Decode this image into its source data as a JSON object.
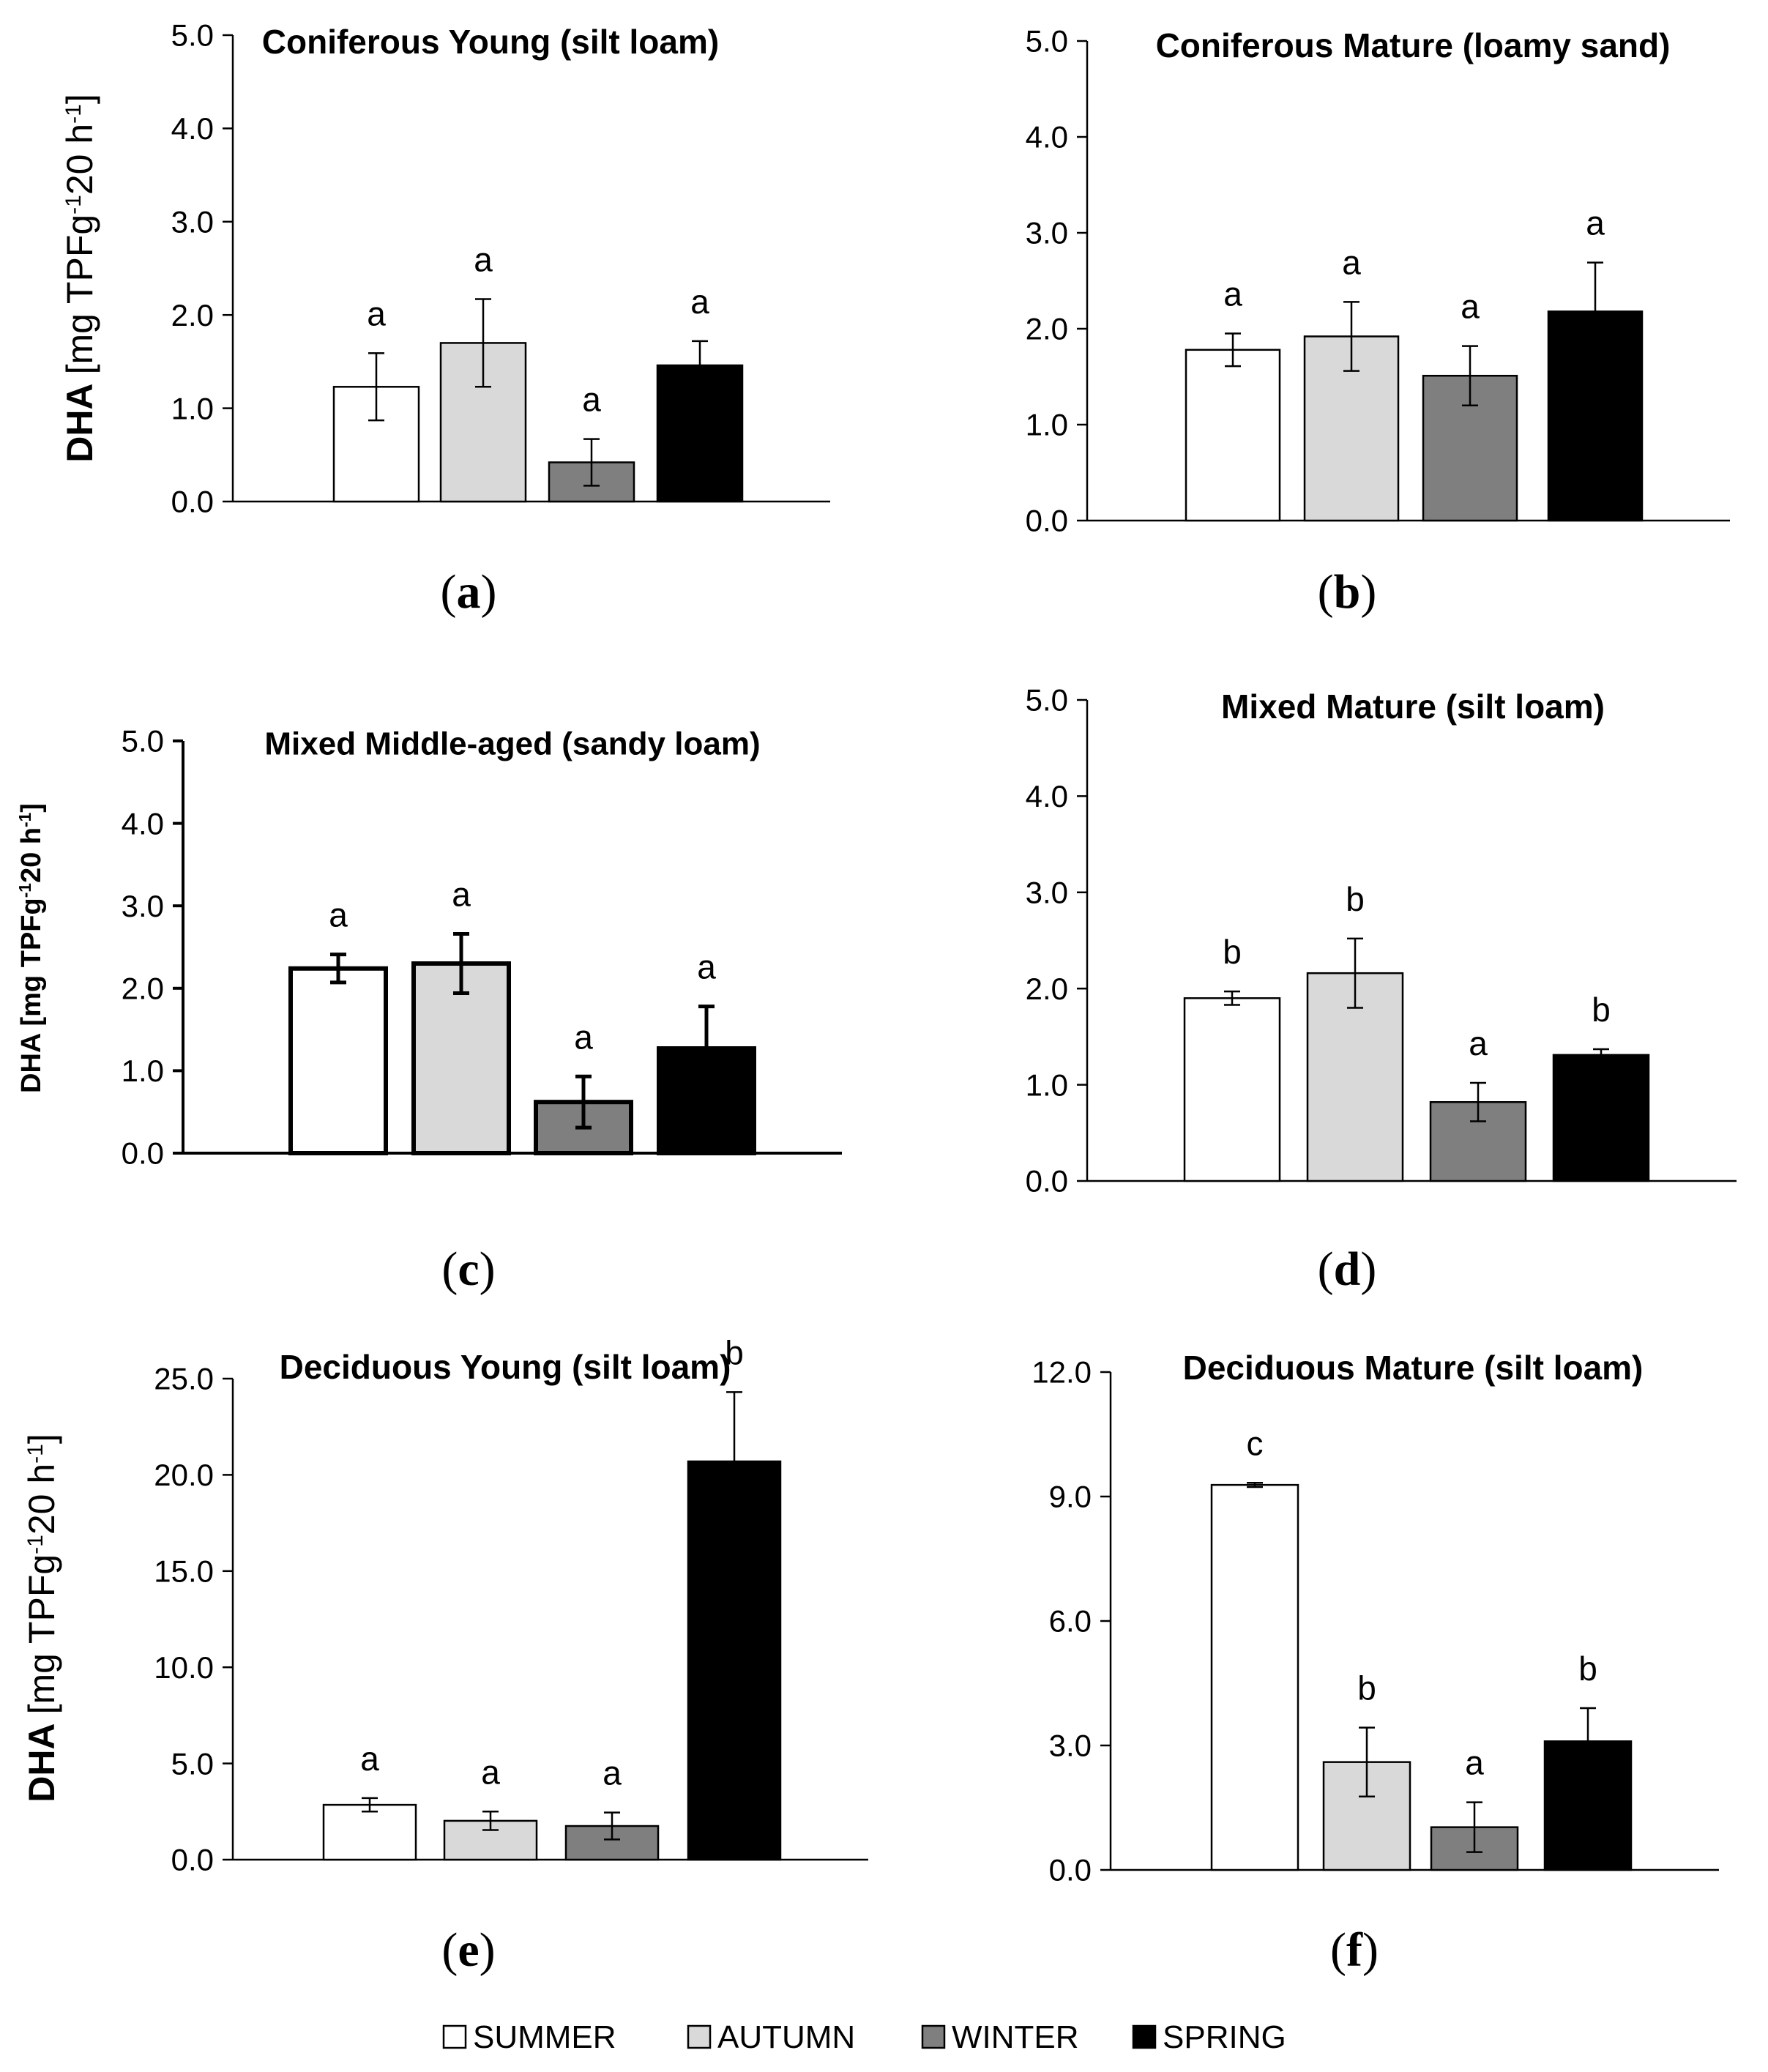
{
  "figure": {
    "legend": [
      {
        "name": "SUMMER",
        "color": "#ffffff"
      },
      {
        "name": "AUTUMN",
        "color": "#d9d9d9"
      },
      {
        "name": "WINTER",
        "color": "#7f7f7f"
      },
      {
        "name": "SPRING",
        "color": "#000000"
      }
    ],
    "ylabel_prefix": "DHA",
    "ylabel_unit_a": "[mg TPFg",
    "ylabel_exp": "-1",
    "ylabel_unit_b": "20 h",
    "ylabel_exp2": "-1",
    "ylabel_close": "]"
  },
  "chart_data": [
    {
      "type": "bar",
      "panel": "(a)",
      "title": "Coniferous Young (silt loam)",
      "categories": [
        "SUMMER",
        "AUTUMN",
        "WINTER",
        "SPRING"
      ],
      "values": [
        1.23,
        1.7,
        0.42,
        1.46
      ],
      "errors": [
        0.36,
        0.47,
        0.25,
        0.26
      ],
      "letters": [
        "a",
        "a",
        "a",
        "a"
      ],
      "ylim": [
        0,
        5
      ],
      "yticks": [
        "0.0",
        "1.0",
        "2.0",
        "3.0",
        "4.0",
        "5.0"
      ],
      "ylabel": "DHA [mg TPFg-1 20 h-1]"
    },
    {
      "type": "bar",
      "panel": "(b)",
      "title": "Coniferous Mature (loamy sand)",
      "categories": [
        "SUMMER",
        "AUTUMN",
        "WINTER",
        "SPRING"
      ],
      "values": [
        1.78,
        1.92,
        1.51,
        2.18
      ],
      "errors": [
        0.17,
        0.36,
        0.31,
        0.51
      ],
      "letters": [
        "a",
        "a",
        "a",
        "a"
      ],
      "ylim": [
        0,
        5
      ],
      "yticks": [
        "0.0",
        "1.0",
        "2.0",
        "3.0",
        "4.0",
        "5.0"
      ],
      "ylabel": ""
    },
    {
      "type": "bar",
      "panel": "(c)",
      "title": "Mixed Middle-aged (sandy loam)",
      "categories": [
        "SUMMER",
        "AUTUMN",
        "WINTER",
        "SPRING"
      ],
      "values": [
        2.24,
        2.3,
        0.62,
        1.27
      ],
      "errors": [
        0.17,
        0.36,
        0.31,
        0.51
      ],
      "letters": [
        "a",
        "a",
        "a",
        "a"
      ],
      "ylim": [
        0,
        5
      ],
      "yticks": [
        "0.0",
        "1.0",
        "2.0",
        "3.0",
        "4.0",
        "5.0"
      ],
      "ylabel": "DHA [mg TPFg-1 20 h-1]"
    },
    {
      "type": "bar",
      "panel": "(d)",
      "title": "Mixed Mature (silt loam)",
      "categories": [
        "SUMMER",
        "AUTUMN",
        "WINTER",
        "SPRING"
      ],
      "values": [
        1.9,
        2.16,
        0.82,
        1.31
      ],
      "errors": [
        0.07,
        0.36,
        0.2,
        0.06
      ],
      "letters": [
        "b",
        "b",
        "a",
        "b"
      ],
      "ylim": [
        0,
        5
      ],
      "yticks": [
        "0.0",
        "1.0",
        "2.0",
        "3.0",
        "4.0",
        "5.0"
      ],
      "ylabel": ""
    },
    {
      "type": "bar",
      "panel": "(e)",
      "title": "Deciduous Young (silt loam)",
      "categories": [
        "SUMMER",
        "AUTUMN",
        "WINTER",
        "SPRING"
      ],
      "values": [
        2.85,
        2.02,
        1.75,
        20.7
      ],
      "errors": [
        0.35,
        0.48,
        0.7,
        3.6
      ],
      "letters": [
        "a",
        "a",
        "a",
        "b"
      ],
      "ylim": [
        0,
        25
      ],
      "yticks": [
        "0.0",
        "5.0",
        "10.0",
        "15.0",
        "20.0",
        "25.0"
      ],
      "ylabel": "DHA [mg TPFg-1 20 h-1]"
    },
    {
      "type": "bar",
      "panel": "(f)",
      "title": "Deciduous Mature (silt loam)",
      "categories": [
        "SUMMER",
        "AUTUMN",
        "WINTER",
        "SPRING"
      ],
      "values": [
        9.28,
        2.6,
        1.03,
        3.1
      ],
      "errors": [
        0.05,
        0.83,
        0.6,
        0.8
      ],
      "letters": [
        "c",
        "b",
        "a",
        "b"
      ],
      "ylim": [
        0,
        12
      ],
      "yticks": [
        "0.0",
        "3.0",
        "6.0",
        "9.0",
        "12.0"
      ],
      "ylabel": ""
    }
  ]
}
